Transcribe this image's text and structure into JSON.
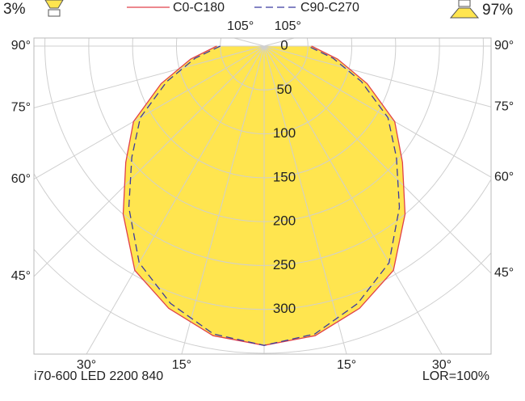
{
  "chart_data": {
    "type": "polar",
    "series": [
      {
        "name": "C0-C180",
        "color": "#e0404a",
        "fill": "#ffe54f",
        "dash": false,
        "values": [
          54,
          85,
          125,
          172,
          206,
          250,
          295,
          318,
          335,
          341,
          335,
          318,
          295,
          250,
          206,
          172,
          125,
          85,
          54
        ]
      },
      {
        "name": "C90-C270",
        "color": "#3a3aa0",
        "dash": true,
        "values": [
          50,
          80,
          118,
          163,
          197,
          240,
          285,
          312,
          333,
          341,
          333,
          312,
          285,
          240,
          197,
          163,
          118,
          80,
          50
        ]
      }
    ],
    "angles": [
      -90,
      -80,
      -70,
      -60,
      -50,
      -40,
      -30,
      -20,
      -10,
      0,
      10,
      20,
      30,
      40,
      50,
      60,
      70,
      80,
      90
    ],
    "rlim": [
      0,
      350
    ],
    "rticks": [
      0,
      50,
      100,
      150,
      200,
      250,
      300
    ],
    "angle_ticks": [
      {
        "value": -105,
        "label": "105°"
      },
      {
        "value": -90,
        "label": "90°"
      },
      {
        "value": -75,
        "label": "75°"
      },
      {
        "value": -60,
        "label": "60°"
      },
      {
        "value": -45,
        "label": "45°"
      },
      {
        "value": -30,
        "label": "30°"
      },
      {
        "value": -15,
        "label": "15°"
      },
      {
        "value": 15,
        "label": "15°"
      },
      {
        "value": 30,
        "label": "30°"
      },
      {
        "value": 45,
        "label": "45°"
      },
      {
        "value": 60,
        "label": "60°"
      },
      {
        "value": 75,
        "label": "75°"
      },
      {
        "value": 90,
        "label": "90°"
      },
      {
        "value": 105,
        "label": "105°"
      }
    ],
    "light_output": {
      "values": [
        3,
        97
      ],
      "value_labels": [
        "3%",
        "97%"
      ]
    },
    "luminaire": "i70-600 LED 2200 840",
    "lor": "LOR=100%"
  }
}
